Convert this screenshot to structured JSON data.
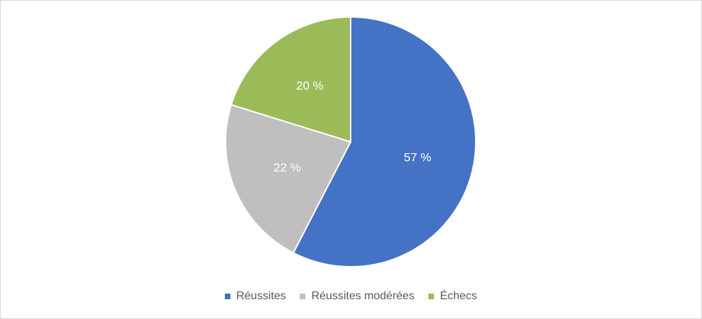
{
  "chart_data": {
    "type": "pie",
    "slices": [
      {
        "name": "Réussites",
        "value": 57,
        "label": "57 %",
        "color": "#4472C4"
      },
      {
        "name": "Réussites modérées",
        "value": 22,
        "label": "22 %",
        "color": "#BFBFBF"
      },
      {
        "name": "Échecs",
        "value": 20,
        "label": "20 %",
        "color": "#9BBB59"
      }
    ],
    "legend_position": "bottom",
    "start_angle": "top",
    "direction": "clockwise"
  }
}
